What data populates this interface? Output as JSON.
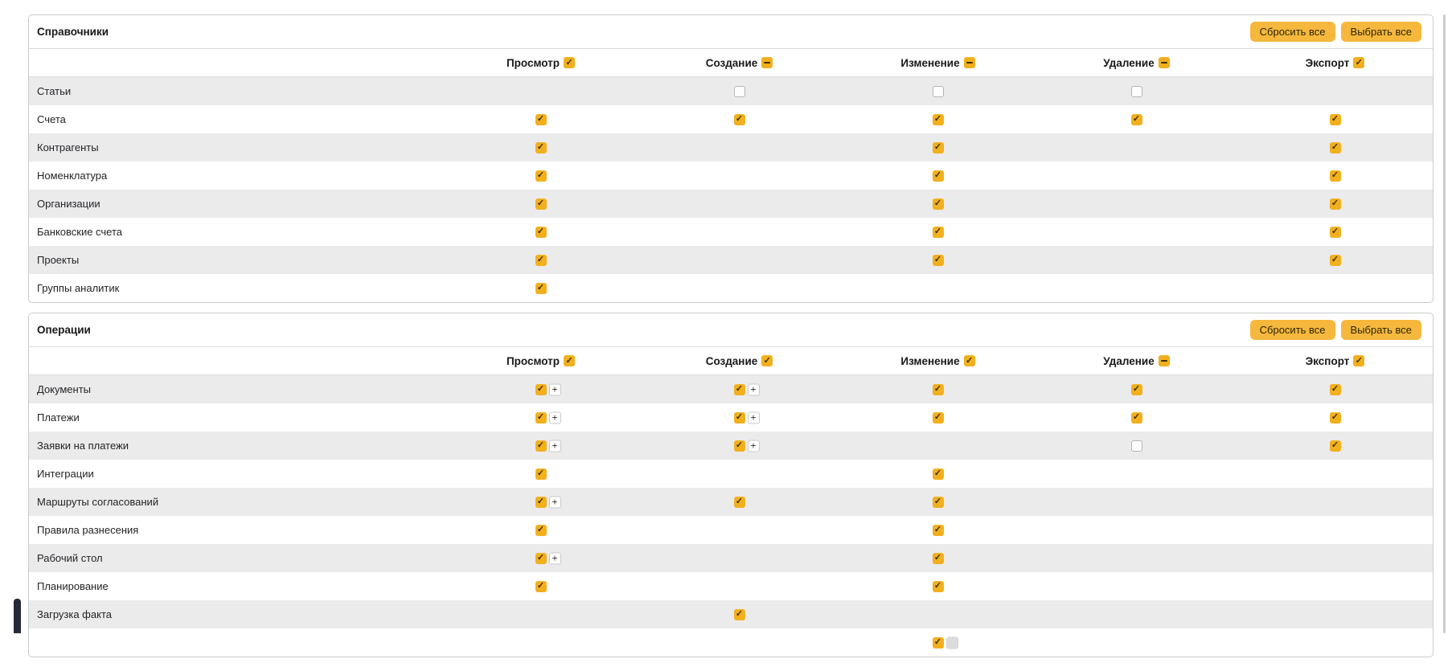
{
  "colors": {
    "checkbox_accent": "#f2b01e",
    "button_bg": "#f5b83d",
    "row_stripe": "#ebebec",
    "panel_border": "#c9ccce",
    "widget_bar": "#242a38"
  },
  "buttons": {
    "reset_all": "Сбросить все",
    "select_all": "Выбрать все"
  },
  "columns": [
    "Просмотр",
    "Создание",
    "Изменение",
    "Удаление",
    "Экспорт"
  ],
  "sections": [
    {
      "title": "Справочники",
      "header_states": [
        "checked",
        "indeterminate",
        "indeterminate",
        "indeterminate",
        "checked"
      ],
      "rows": [
        {
          "label": "Статьи",
          "cells": [
            "none",
            "unchecked",
            "unchecked",
            "unchecked",
            "none"
          ]
        },
        {
          "label": "Счета",
          "cells": [
            "checked",
            "checked",
            "checked",
            "checked",
            "checked"
          ]
        },
        {
          "label": "Контрагенты",
          "cells": [
            "checked",
            "none",
            "checked",
            "none",
            "checked"
          ]
        },
        {
          "label": "Номенклатура",
          "cells": [
            "checked",
            "none",
            "checked",
            "none",
            "checked"
          ]
        },
        {
          "label": "Организации",
          "cells": [
            "checked",
            "none",
            "checked",
            "none",
            "checked"
          ]
        },
        {
          "label": "Банковские счета",
          "cells": [
            "checked",
            "none",
            "checked",
            "none",
            "checked"
          ]
        },
        {
          "label": "Проекты",
          "cells": [
            "checked",
            "none",
            "checked",
            "none",
            "checked"
          ]
        },
        {
          "label": "Группы аналитик",
          "cells": [
            "checked",
            "none",
            "none",
            "none",
            "none"
          ]
        }
      ]
    },
    {
      "title": "Операции",
      "header_states": [
        "checked",
        "checked",
        "checked",
        "indeterminate",
        "checked"
      ],
      "rows": [
        {
          "label": "Документы",
          "cells": [
            "checked_plus",
            "checked_plus",
            "checked",
            "checked",
            "checked"
          ]
        },
        {
          "label": "Платежи",
          "cells": [
            "checked_plus",
            "checked_plus",
            "checked",
            "checked",
            "checked"
          ]
        },
        {
          "label": "Заявки на платежи",
          "cells": [
            "checked_plus",
            "checked_plus",
            "none",
            "unchecked",
            "checked"
          ]
        },
        {
          "label": "Интеграции",
          "cells": [
            "checked",
            "none",
            "checked",
            "none",
            "none"
          ]
        },
        {
          "label": "Маршруты согласований",
          "cells": [
            "checked_plus",
            "checked",
            "checked",
            "none",
            "none"
          ]
        },
        {
          "label": "Правила разнесения",
          "cells": [
            "checked",
            "none",
            "checked",
            "none",
            "none"
          ]
        },
        {
          "label": "Рабочий стол",
          "cells": [
            "checked_plus",
            "none",
            "checked",
            "none",
            "none"
          ]
        },
        {
          "label": "Планирование",
          "cells": [
            "checked",
            "none",
            "checked",
            "none",
            "none"
          ]
        },
        {
          "label": "Загрузка факта",
          "cells": [
            "none",
            "checked",
            "none",
            "none",
            "none"
          ]
        },
        {
          "label": "",
          "cells": [
            "none",
            "none",
            "checked_plus_disabled",
            "none",
            "none"
          ]
        }
      ]
    }
  ]
}
